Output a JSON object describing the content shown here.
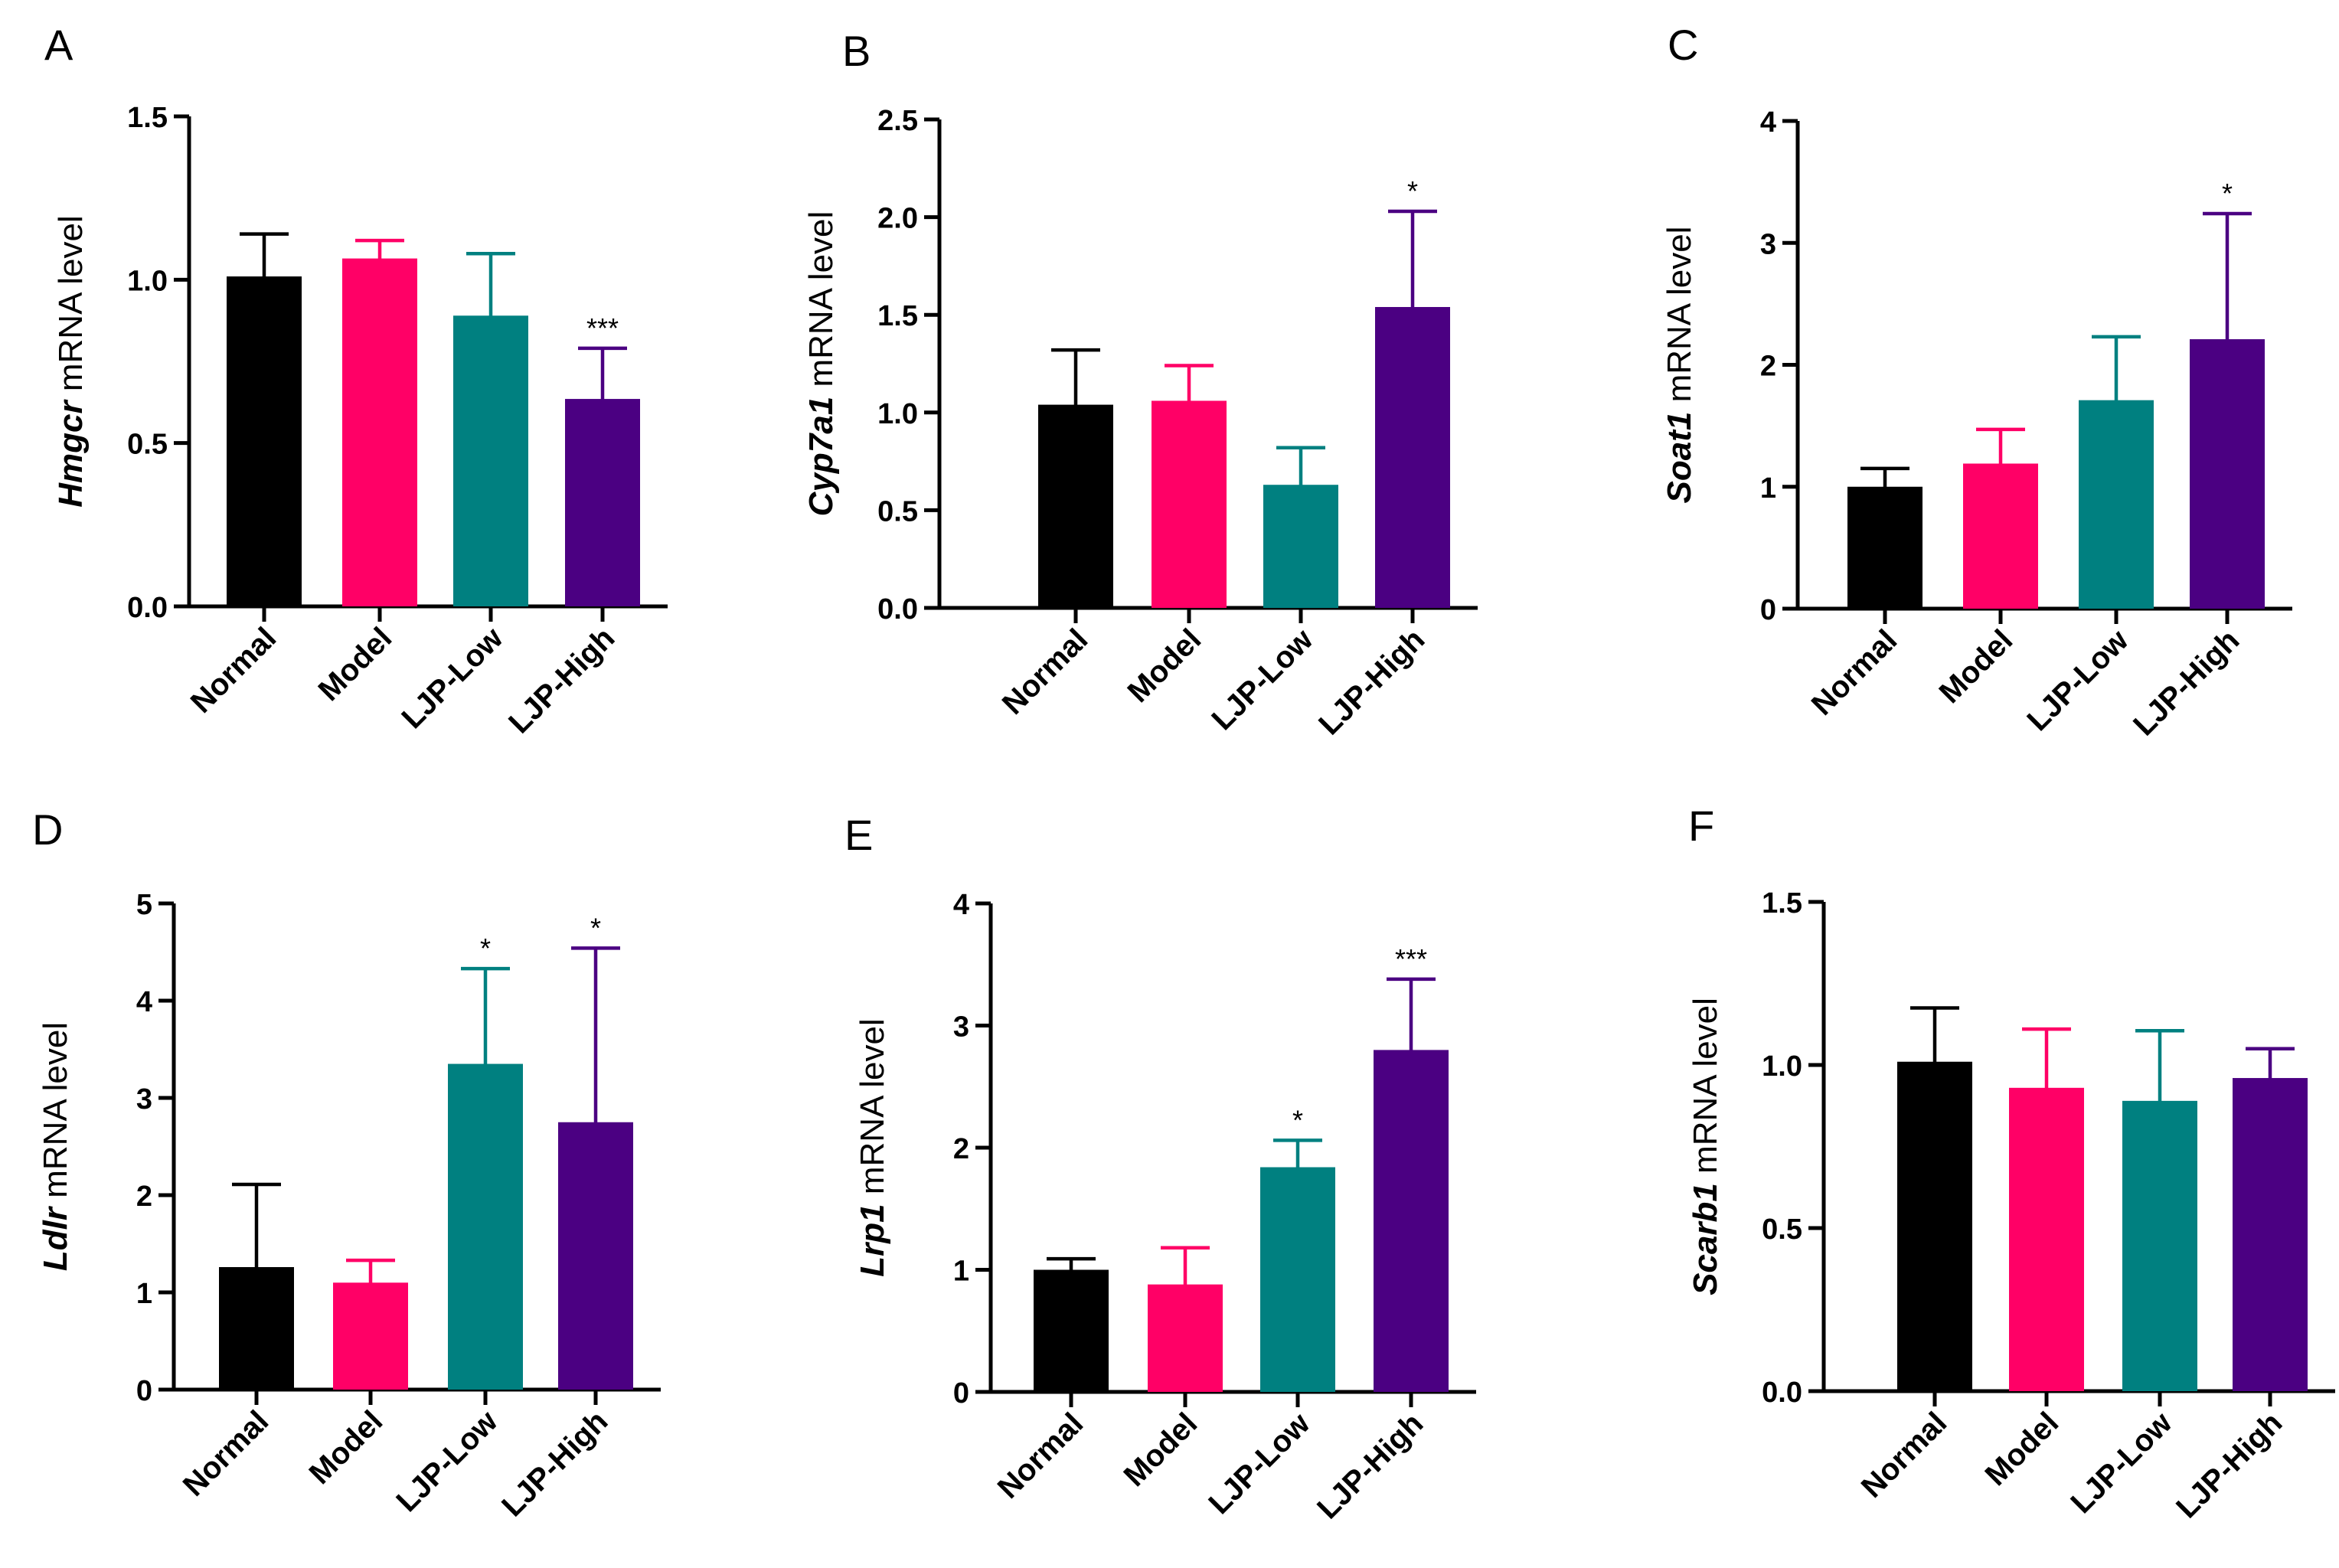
{
  "colors": {
    "Normal": "#000000",
    "Model": "#ff0066",
    "LJP-Low": "#008080",
    "LJP-High": "#4b0082",
    "axis": "#000000"
  },
  "ylabel_suffix": " mRNA level",
  "chart_data": [
    {
      "panel": "A",
      "type": "bar",
      "gene": "Hmgcr",
      "categories": [
        "Normal",
        "Model",
        "LJP-Low",
        "LJP-High"
      ],
      "values": [
        1.01,
        1.065,
        0.89,
        0.635
      ],
      "errors": [
        0.13,
        0.055,
        0.19,
        0.155
      ],
      "significance": [
        "",
        "",
        "",
        "***"
      ],
      "ylim": [
        0,
        1.5
      ],
      "yticks": [
        "0.0",
        "0.5",
        "1.0",
        "1.5"
      ],
      "ylabel": "Hmgcr mRNA level"
    },
    {
      "panel": "B",
      "type": "bar",
      "gene": "Cyp7a1",
      "categories": [
        "Normal",
        "Model",
        "LJP-Low",
        "LJP-High"
      ],
      "values": [
        1.04,
        1.06,
        0.63,
        1.54
      ],
      "errors": [
        0.28,
        0.18,
        0.19,
        0.49
      ],
      "significance": [
        "",
        "",
        "",
        "*"
      ],
      "ylim": [
        0,
        2.5
      ],
      "yticks": [
        "0.0",
        "0.5",
        "1.0",
        "1.5",
        "2.0",
        "2.5"
      ],
      "ylabel": "Cyp7a1 mRNA level"
    },
    {
      "panel": "C",
      "type": "bar",
      "gene": "Soat1",
      "categories": [
        "Normal",
        "Model",
        "LJP-Low",
        "LJP-High"
      ],
      "values": [
        1.0,
        1.19,
        1.71,
        2.21
      ],
      "errors": [
        0.15,
        0.28,
        0.52,
        1.03
      ],
      "significance": [
        "",
        "",
        "",
        "*"
      ],
      "ylim": [
        0,
        4
      ],
      "yticks": [
        "0",
        "1",
        "2",
        "3",
        "4"
      ],
      "ylabel": "Soat1 mRNA level"
    },
    {
      "panel": "D",
      "type": "bar",
      "gene": "Ldlr",
      "categories": [
        "Normal",
        "Model",
        "LJP-Low",
        "LJP-High"
      ],
      "values": [
        1.26,
        1.1,
        3.35,
        2.75
      ],
      "errors": [
        0.85,
        0.23,
        0.98,
        1.79
      ],
      "significance": [
        "",
        "",
        "*",
        "*"
      ],
      "ylim": [
        0,
        5
      ],
      "yticks": [
        "0",
        "1",
        "2",
        "3",
        "4",
        "5"
      ],
      "ylabel": "Ldlr mRNA level"
    },
    {
      "panel": "E",
      "type": "bar",
      "gene": "Lrp1",
      "categories": [
        "Normal",
        "Model",
        "LJP-Low",
        "LJP-High"
      ],
      "values": [
        1.0,
        0.88,
        1.84,
        2.8
      ],
      "errors": [
        0.09,
        0.3,
        0.22,
        0.58
      ],
      "significance": [
        "",
        "",
        "*",
        "***"
      ],
      "ylim": [
        0,
        4
      ],
      "yticks": [
        "0",
        "1",
        "2",
        "3",
        "4"
      ],
      "ylabel": "Lrp1 mRNA level"
    },
    {
      "panel": "F",
      "type": "bar",
      "gene": "Scarb1",
      "categories": [
        "Normal",
        "Model",
        "LJP-Low",
        "LJP-High"
      ],
      "values": [
        1.01,
        0.93,
        0.89,
        0.96
      ],
      "errors": [
        0.165,
        0.18,
        0.215,
        0.09
      ],
      "significance": [
        "",
        "",
        "",
        ""
      ],
      "ylim": [
        0,
        1.5
      ],
      "yticks": [
        "0.0",
        "0.5",
        "1.0",
        "1.5"
      ],
      "ylabel": "Scarb1 mRNA level"
    }
  ]
}
